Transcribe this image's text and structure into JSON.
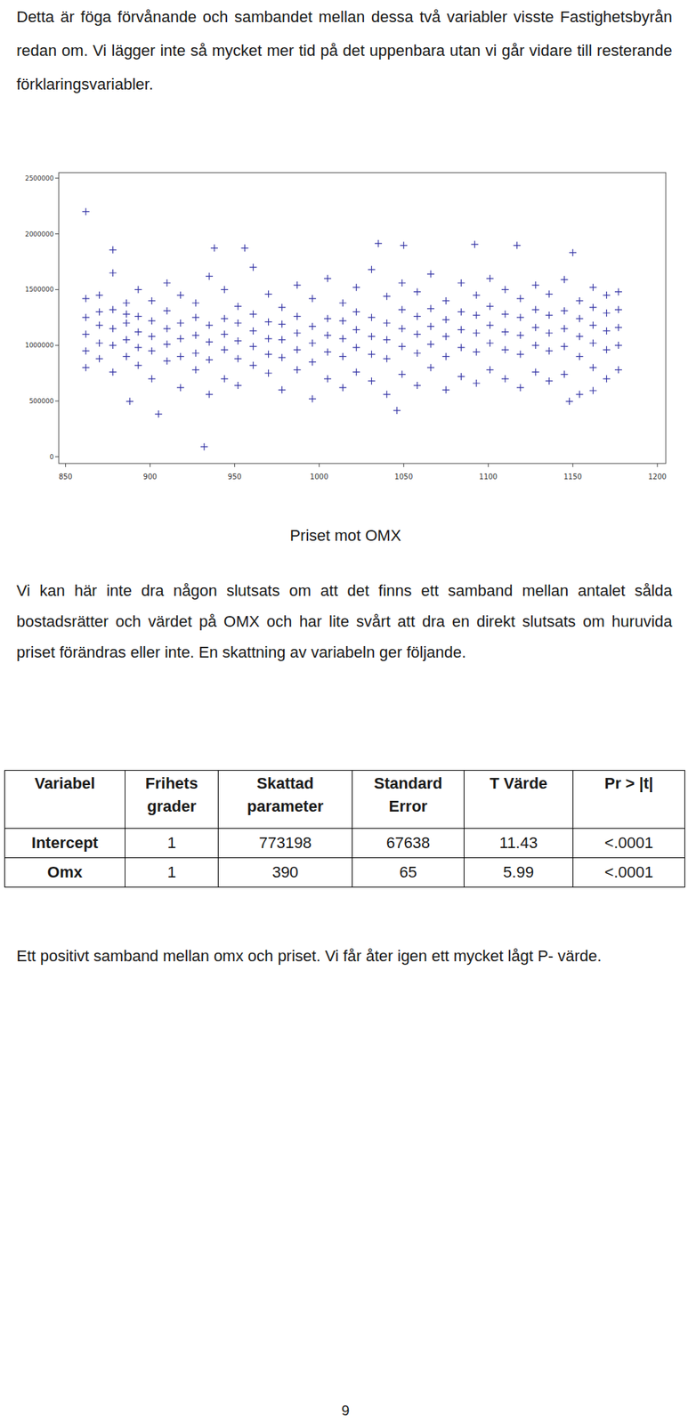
{
  "intro": "Detta är föga förvånande och sambandet mellan dessa två variabler visste Fastighetsbyrån redan om. Vi lägger inte så mycket mer tid på det uppenbara utan vi går vidare till resterande förklaringsvariabler.",
  "chart_data": {
    "type": "scatter",
    "marker": "plus",
    "color": "#3636a6",
    "grid": false,
    "xlim": [
      846,
      1205
    ],
    "xticks": [
      850,
      900,
      950,
      1000,
      1050,
      1100,
      1150,
      1200
    ],
    "ylim": [
      -60000,
      2550000
    ],
    "yticks": [
      0,
      500000,
      1000000,
      1500000,
      2000000,
      2500000
    ],
    "x": [
      862,
      862,
      862,
      862,
      862,
      870,
      870,
      870,
      870,
      870,
      878,
      878,
      878,
      878,
      878,
      886,
      886,
      886,
      886,
      886,
      893,
      893,
      893,
      893,
      893,
      901,
      901,
      901,
      901,
      901,
      910,
      910,
      910,
      910,
      910,
      918,
      918,
      918,
      918,
      918,
      927,
      927,
      927,
      927,
      927,
      935,
      935,
      935,
      935,
      935,
      944,
      944,
      944,
      944,
      944,
      952,
      952,
      952,
      952,
      952,
      961,
      961,
      961,
      961,
      961,
      970,
      970,
      970,
      970,
      970,
      978,
      978,
      978,
      978,
      978,
      987,
      987,
      987,
      987,
      987,
      996,
      996,
      996,
      996,
      996,
      1005,
      1005,
      1005,
      1005,
      1005,
      1014,
      1014,
      1014,
      1014,
      1014,
      1022,
      1022,
      1022,
      1022,
      1022,
      1031,
      1031,
      1031,
      1031,
      1031,
      1040,
      1040,
      1040,
      1040,
      1040,
      1049,
      1049,
      1049,
      1049,
      1049,
      1058,
      1058,
      1058,
      1058,
      1058,
      1066,
      1066,
      1066,
      1066,
      1066,
      1075,
      1075,
      1075,
      1075,
      1075,
      1084,
      1084,
      1084,
      1084,
      1084,
      1093,
      1093,
      1093,
      1093,
      1093,
      1101,
      1101,
      1101,
      1101,
      1101,
      1110,
      1110,
      1110,
      1110,
      1110,
      1119,
      1119,
      1119,
      1119,
      1119,
      1128,
      1128,
      1128,
      1128,
      1128,
      1136,
      1136,
      1136,
      1136,
      1136,
      1145,
      1145,
      1145,
      1145,
      1145,
      1154,
      1154,
      1154,
      1154,
      1154,
      1162,
      1162,
      1162,
      1162,
      1162,
      1170,
      1170,
      1170,
      1170,
      1170,
      1177,
      1177,
      1177,
      1177,
      1177,
      862,
      878,
      888,
      905,
      932,
      938,
      956,
      1035,
      1050,
      1092,
      1117,
      1046,
      1148,
      1162,
      1150
    ],
    "values": [
      800000,
      950000,
      1100000,
      1250000,
      1420000,
      880000,
      1020000,
      1180000,
      1300000,
      1450000,
      760000,
      1000000,
      1150000,
      1320000,
      1650000,
      900000,
      1050000,
      1200000,
      1380000,
      1280000,
      820000,
      980000,
      1120000,
      1260000,
      1500000,
      700000,
      950000,
      1080000,
      1220000,
      1400000,
      860000,
      1010000,
      1150000,
      1310000,
      1560000,
      620000,
      900000,
      1060000,
      1200000,
      1450000,
      780000,
      930000,
      1090000,
      1250000,
      1380000,
      560000,
      870000,
      1030000,
      1180000,
      1620000,
      700000,
      960000,
      1100000,
      1240000,
      1500000,
      640000,
      880000,
      1040000,
      1200000,
      1350000,
      820000,
      990000,
      1130000,
      1280000,
      1700000,
      750000,
      920000,
      1060000,
      1210000,
      1460000,
      600000,
      890000,
      1050000,
      1190000,
      1340000,
      780000,
      960000,
      1110000,
      1260000,
      1540000,
      520000,
      850000,
      1020000,
      1170000,
      1420000,
      700000,
      940000,
      1090000,
      1240000,
      1600000,
      620000,
      900000,
      1060000,
      1220000,
      1380000,
      760000,
      980000,
      1140000,
      1300000,
      1520000,
      680000,
      920000,
      1080000,
      1250000,
      1680000,
      560000,
      880000,
      1050000,
      1200000,
      1440000,
      740000,
      990000,
      1150000,
      1320000,
      1560000,
      640000,
      930000,
      1100000,
      1260000,
      1480000,
      800000,
      1010000,
      1170000,
      1330000,
      1640000,
      600000,
      900000,
      1080000,
      1230000,
      1400000,
      720000,
      980000,
      1140000,
      1300000,
      1560000,
      660000,
      940000,
      1110000,
      1270000,
      1450000,
      780000,
      1020000,
      1180000,
      1350000,
      1600000,
      700000,
      960000,
      1120000,
      1280000,
      1500000,
      620000,
      920000,
      1090000,
      1250000,
      1420000,
      760000,
      1000000,
      1160000,
      1320000,
      1540000,
      680000,
      950000,
      1110000,
      1270000,
      1460000,
      740000,
      990000,
      1150000,
      1310000,
      1590000,
      560000,
      900000,
      1080000,
      1240000,
      1400000,
      800000,
      1020000,
      1180000,
      1340000,
      1520000,
      700000,
      960000,
      1130000,
      1290000,
      1450000,
      780000,
      1000000,
      1160000,
      1320000,
      1480000,
      2200000,
      1857000,
      497000,
      383000,
      90000,
      1873000,
      1873000,
      1914000,
      1897000,
      1906000,
      1897000,
      415000,
      497000,
      594000,
      1832000
    ]
  },
  "figure_caption": "Priset mot OMX",
  "paragraph": "Vi kan här inte dra någon slutsats om att det finns ett samband mellan antalet sålda bostadsrätter och värdet på OMX och har lite svårt att dra en direkt slutsats om huruvida priset förändras eller inte. En skattning av variabeln ger följande.",
  "table": {
    "header": [
      "Variabel",
      "Frihets grader",
      "Skattad parameter",
      "Standard Error",
      "T Värde",
      "Pr > |t|"
    ],
    "rows": [
      [
        "Intercept",
        "1",
        "773198",
        "67638",
        "11.43",
        "<.0001"
      ],
      [
        "Omx",
        "1",
        "390",
        "65",
        "5.99",
        "<.0001"
      ]
    ]
  },
  "conclusion": "Ett positivt samband mellan omx och priset. Vi får åter igen ett mycket lågt P- värde.",
  "page_number": "9"
}
